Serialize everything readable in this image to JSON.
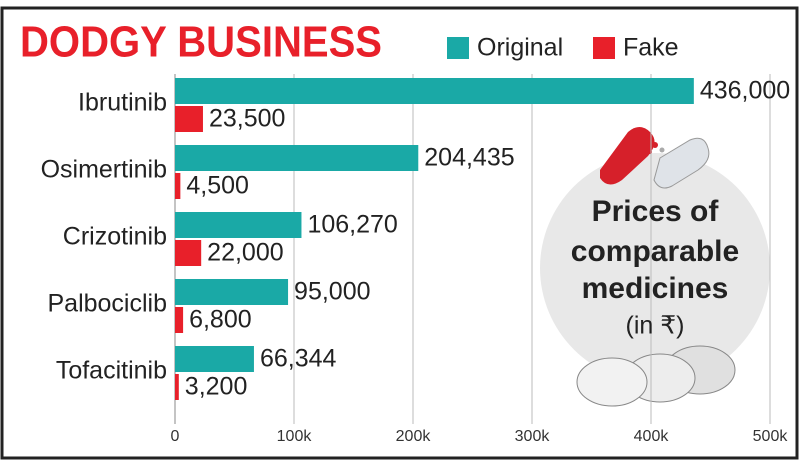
{
  "chart_data": {
    "type": "bar",
    "orientation": "horizontal",
    "title": "DODGY BUSINESS",
    "annotation": [
      "Prices of",
      "comparable",
      "medicines",
      "(in ₹)"
    ],
    "categories": [
      "Ibrutinib",
      "Osimertinib",
      "Crizotinib",
      "Palbociclib",
      "Tofacitinib"
    ],
    "series": [
      {
        "name": "Original",
        "color": "#1aa9a6",
        "values": [
          436000,
          204435,
          106270,
          95000,
          66344
        ],
        "value_labels": [
          "436,000",
          "204,435",
          "106,270",
          "95,000",
          "66,344"
        ]
      },
      {
        "name": "Fake",
        "color": "#e8202a",
        "values": [
          23500,
          4500,
          22000,
          6800,
          3200
        ],
        "value_labels": [
          "23,500",
          "4,500",
          "22,000",
          "6,800",
          "3,200"
        ]
      }
    ],
    "xlim": [
      0,
      500000
    ],
    "xticks": [
      0,
      {
        "value": 100000,
        "label": "100k"
      },
      {
        "value": 200000,
        "label": "200k"
      },
      {
        "value": 300000,
        "label": "300k"
      },
      {
        "value": 400000,
        "label": "400k"
      },
      {
        "value": 500000,
        "label": "500k"
      }
    ],
    "grid": true,
    "legend": "top"
  }
}
